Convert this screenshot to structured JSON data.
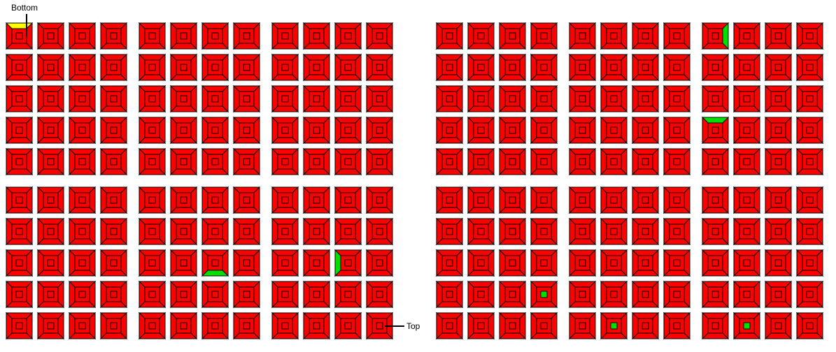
{
  "labels": {
    "bottom": "Bottom",
    "top": "Top"
  }
}
